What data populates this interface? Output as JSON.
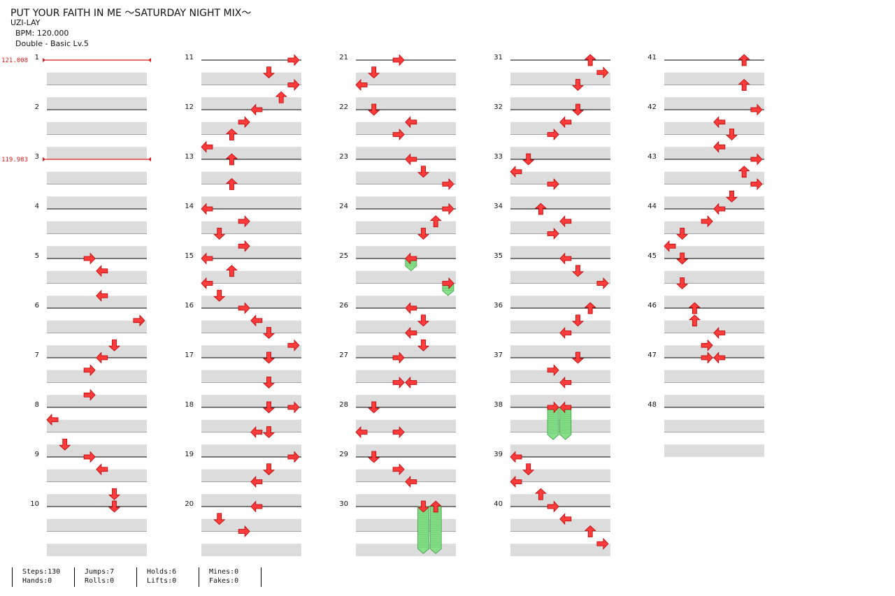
{
  "header": {
    "title": "PUT YOUR FAITH IN ME ～SATURDAY NIGHT MIX～",
    "artist": "UZI-LAY",
    "bpm": "BPM: 120.000",
    "difficulty": "Double - Basic  Lv.5"
  },
  "bpm_changes": [
    {
      "measure": 1,
      "label": "121.008"
    },
    {
      "measure": 3,
      "label": "119.983"
    }
  ],
  "measure_count": 48,
  "columns": 10,
  "notes": [
    {
      "m": 5,
      "row": 0,
      "col": 3,
      "dir": "right"
    },
    {
      "m": 5,
      "row": 1,
      "col": 4,
      "dir": "left"
    },
    {
      "m": 5,
      "row": 3,
      "col": 4,
      "dir": "left"
    },
    {
      "m": 6,
      "row": 1,
      "col": 7,
      "dir": "right"
    },
    {
      "m": 6,
      "row": 3,
      "col": 5,
      "dir": "down"
    },
    {
      "m": 7,
      "row": 0,
      "col": 4,
      "dir": "left"
    },
    {
      "m": 7,
      "row": 1,
      "col": 3,
      "dir": "right"
    },
    {
      "m": 7,
      "row": 3,
      "col": 3,
      "dir": "right"
    },
    {
      "m": 8,
      "row": 1,
      "col": 0,
      "dir": "left"
    },
    {
      "m": 8,
      "row": 3,
      "col": 1,
      "dir": "down"
    },
    {
      "m": 9,
      "row": 0,
      "col": 3,
      "dir": "right"
    },
    {
      "m": 9,
      "row": 1,
      "col": 4,
      "dir": "left"
    },
    {
      "m": 9,
      "row": 3,
      "col": 5,
      "dir": "down"
    },
    {
      "m": 10,
      "row": 0,
      "col": 5,
      "dir": "down"
    },
    {
      "m": 11,
      "row": 0,
      "col": 7,
      "dir": "right"
    },
    {
      "m": 11,
      "row": 1,
      "col": 5,
      "dir": "down"
    },
    {
      "m": 11,
      "row": 2,
      "col": 7,
      "dir": "right"
    },
    {
      "m": 11,
      "row": 3,
      "col": 6,
      "dir": "up"
    },
    {
      "m": 12,
      "row": 0,
      "col": 4,
      "dir": "left"
    },
    {
      "m": 12,
      "row": 1,
      "col": 3,
      "dir": "right"
    },
    {
      "m": 12,
      "row": 2,
      "col": 2,
      "dir": "up"
    },
    {
      "m": 12,
      "row": 3,
      "col": 0,
      "dir": "left"
    },
    {
      "m": 13,
      "row": 0,
      "col": 2,
      "dir": "up"
    },
    {
      "m": 13,
      "row": 2,
      "col": 2,
      "dir": "up"
    },
    {
      "m": 14,
      "row": 0,
      "col": 0,
      "dir": "left"
    },
    {
      "m": 14,
      "row": 1,
      "col": 3,
      "dir": "right"
    },
    {
      "m": 14,
      "row": 2,
      "col": 1,
      "dir": "down"
    },
    {
      "m": 14,
      "row": 3,
      "col": 3,
      "dir": "right"
    },
    {
      "m": 15,
      "row": 0,
      "col": 0,
      "dir": "left"
    },
    {
      "m": 15,
      "row": 1,
      "col": 2,
      "dir": "up"
    },
    {
      "m": 15,
      "row": 2,
      "col": 0,
      "dir": "left"
    },
    {
      "m": 15,
      "row": 3,
      "col": 1,
      "dir": "down"
    },
    {
      "m": 16,
      "row": 0,
      "col": 3,
      "dir": "right"
    },
    {
      "m": 16,
      "row": 1,
      "col": 4,
      "dir": "left"
    },
    {
      "m": 16,
      "row": 2,
      "col": 5,
      "dir": "down"
    },
    {
      "m": 16,
      "row": 3,
      "col": 7,
      "dir": "right"
    },
    {
      "m": 17,
      "row": 0,
      "col": 5,
      "dir": "down"
    },
    {
      "m": 17,
      "row": 2,
      "col": 5,
      "dir": "down"
    },
    {
      "m": 18,
      "row": 0,
      "col": 5,
      "dir": "down"
    },
    {
      "m": 18,
      "row": 0,
      "col": 7,
      "dir": "right"
    },
    {
      "m": 18,
      "row": 2,
      "col": 4,
      "dir": "left"
    },
    {
      "m": 18,
      "row": 2,
      "col": 5,
      "dir": "down"
    },
    {
      "m": 19,
      "row": 0,
      "col": 7,
      "dir": "right"
    },
    {
      "m": 19,
      "row": 1,
      "col": 5,
      "dir": "down"
    },
    {
      "m": 19,
      "row": 2,
      "col": 4,
      "dir": "left"
    },
    {
      "m": 20,
      "row": 0,
      "col": 4,
      "dir": "left"
    },
    {
      "m": 20,
      "row": 1,
      "col": 1,
      "dir": "down"
    },
    {
      "m": 20,
      "row": 2,
      "col": 3,
      "dir": "right"
    },
    {
      "m": 21,
      "row": 0,
      "col": 3,
      "dir": "right"
    },
    {
      "m": 21,
      "row": 1,
      "col": 1,
      "dir": "down"
    },
    {
      "m": 21,
      "row": 2,
      "col": 0,
      "dir": "left"
    },
    {
      "m": 22,
      "row": 0,
      "col": 1,
      "dir": "down"
    },
    {
      "m": 22,
      "row": 1,
      "col": 4,
      "dir": "left"
    },
    {
      "m": 22,
      "row": 2,
      "col": 3,
      "dir": "right"
    },
    {
      "m": 23,
      "row": 0,
      "col": 4,
      "dir": "left"
    },
    {
      "m": 23,
      "row": 1,
      "col": 5,
      "dir": "down"
    },
    {
      "m": 23,
      "row": 2,
      "col": 7,
      "dir": "right"
    },
    {
      "m": 24,
      "row": 0,
      "col": 7,
      "dir": "right"
    },
    {
      "m": 24,
      "row": 1,
      "col": 6,
      "dir": "up"
    },
    {
      "m": 24,
      "row": 2,
      "col": 5,
      "dir": "down"
    },
    {
      "m": 25,
      "row": 0,
      "col": 4,
      "dir": "left",
      "hold": 0.6
    },
    {
      "m": 25,
      "row": 2,
      "col": 7,
      "dir": "right",
      "hold": 0.6
    },
    {
      "m": 26,
      "row": 0,
      "col": 4,
      "dir": "left"
    },
    {
      "m": 26,
      "row": 1,
      "col": 5,
      "dir": "down"
    },
    {
      "m": 26,
      "row": 2,
      "col": 4,
      "dir": "left"
    },
    {
      "m": 26,
      "row": 3,
      "col": 5,
      "dir": "down"
    },
    {
      "m": 27,
      "row": 0,
      "col": 3,
      "dir": "right"
    },
    {
      "m": 27,
      "row": 2,
      "col": 3,
      "dir": "right"
    },
    {
      "m": 27,
      "row": 2,
      "col": 4,
      "dir": "left"
    },
    {
      "m": 28,
      "row": 0,
      "col": 1,
      "dir": "down"
    },
    {
      "m": 28,
      "row": 2,
      "col": 0,
      "dir": "left"
    },
    {
      "m": 28,
      "row": 2,
      "col": 3,
      "dir": "right"
    },
    {
      "m": 29,
      "row": 0,
      "col": 1,
      "dir": "down"
    },
    {
      "m": 29,
      "row": 1,
      "col": 3,
      "dir": "right"
    },
    {
      "m": 29,
      "row": 2,
      "col": 4,
      "dir": "left"
    },
    {
      "m": 30,
      "row": 0,
      "col": 5,
      "dir": "down",
      "hold": 3.4
    },
    {
      "m": 30,
      "row": 0,
      "col": 6,
      "dir": "up",
      "hold": 3.4
    },
    {
      "m": 31,
      "row": 0,
      "col": 6,
      "dir": "up"
    },
    {
      "m": 31,
      "row": 1,
      "col": 7,
      "dir": "right"
    },
    {
      "m": 31,
      "row": 2,
      "col": 5,
      "dir": "down"
    },
    {
      "m": 32,
      "row": 0,
      "col": 5,
      "dir": "down"
    },
    {
      "m": 32,
      "row": 1,
      "col": 4,
      "dir": "left"
    },
    {
      "m": 32,
      "row": 2,
      "col": 3,
      "dir": "right"
    },
    {
      "m": 33,
      "row": 0,
      "col": 1,
      "dir": "down"
    },
    {
      "m": 33,
      "row": 1,
      "col": 0,
      "dir": "left"
    },
    {
      "m": 33,
      "row": 2,
      "col": 3,
      "dir": "right"
    },
    {
      "m": 34,
      "row": 0,
      "col": 2,
      "dir": "up"
    },
    {
      "m": 34,
      "row": 1,
      "col": 4,
      "dir": "left"
    },
    {
      "m": 34,
      "row": 2,
      "col": 3,
      "dir": "right"
    },
    {
      "m": 35,
      "row": 0,
      "col": 4,
      "dir": "left"
    },
    {
      "m": 35,
      "row": 1,
      "col": 5,
      "dir": "down"
    },
    {
      "m": 35,
      "row": 2,
      "col": 7,
      "dir": "right"
    },
    {
      "m": 36,
      "row": 0,
      "col": 6,
      "dir": "up"
    },
    {
      "m": 36,
      "row": 1,
      "col": 5,
      "dir": "down"
    },
    {
      "m": 36,
      "row": 2,
      "col": 4,
      "dir": "left"
    },
    {
      "m": 37,
      "row": 0,
      "col": 5,
      "dir": "down"
    },
    {
      "m": 37,
      "row": 1,
      "col": 3,
      "dir": "right"
    },
    {
      "m": 37,
      "row": 2,
      "col": 4,
      "dir": "left"
    },
    {
      "m": 38,
      "row": 0,
      "col": 3,
      "dir": "right",
      "hold": 2.2
    },
    {
      "m": 38,
      "row": 0,
      "col": 4,
      "dir": "left",
      "hold": 2.2
    },
    {
      "m": 39,
      "row": 0,
      "col": 0,
      "dir": "left"
    },
    {
      "m": 39,
      "row": 1,
      "col": 1,
      "dir": "down"
    },
    {
      "m": 39,
      "row": 2,
      "col": 0,
      "dir": "left"
    },
    {
      "m": 39,
      "row": 3,
      "col": 2,
      "dir": "up"
    },
    {
      "m": 40,
      "row": 0,
      "col": 3,
      "dir": "right"
    },
    {
      "m": 40,
      "row": 1,
      "col": 4,
      "dir": "left"
    },
    {
      "m": 40,
      "row": 2,
      "col": 6,
      "dir": "up"
    },
    {
      "m": 40,
      "row": 3,
      "col": 7,
      "dir": "right"
    },
    {
      "m": 41,
      "row": 0,
      "col": 6,
      "dir": "up"
    },
    {
      "m": 41,
      "row": 2,
      "col": 6,
      "dir": "up"
    },
    {
      "m": 42,
      "row": 0,
      "col": 7,
      "dir": "right"
    },
    {
      "m": 42,
      "row": 1,
      "col": 4,
      "dir": "left"
    },
    {
      "m": 42,
      "row": 2,
      "col": 5,
      "dir": "down"
    },
    {
      "m": 42,
      "row": 3,
      "col": 4,
      "dir": "left"
    },
    {
      "m": 43,
      "row": 0,
      "col": 7,
      "dir": "right"
    },
    {
      "m": 43,
      "row": 1,
      "col": 6,
      "dir": "up"
    },
    {
      "m": 43,
      "row": 2,
      "col": 7,
      "dir": "right"
    },
    {
      "m": 43,
      "row": 3,
      "col": 5,
      "dir": "down"
    },
    {
      "m": 44,
      "row": 0,
      "col": 4,
      "dir": "left"
    },
    {
      "m": 44,
      "row": 1,
      "col": 3,
      "dir": "right"
    },
    {
      "m": 44,
      "row": 2,
      "col": 1,
      "dir": "down"
    },
    {
      "m": 44,
      "row": 3,
      "col": 0,
      "dir": "left"
    },
    {
      "m": 45,
      "row": 0,
      "col": 1,
      "dir": "down"
    },
    {
      "m": 45,
      "row": 2,
      "col": 1,
      "dir": "down"
    },
    {
      "m": 46,
      "row": 0,
      "col": 2,
      "dir": "up"
    },
    {
      "m": 46,
      "row": 1,
      "col": 2,
      "dir": "up"
    },
    {
      "m": 46,
      "row": 2,
      "col": 4,
      "dir": "left"
    },
    {
      "m": 46,
      "row": 3,
      "col": 3,
      "dir": "right"
    },
    {
      "m": 47,
      "row": 0,
      "col": 3,
      "dir": "right"
    },
    {
      "m": 47,
      "row": 0,
      "col": 4,
      "dir": "left"
    }
  ],
  "stats": [
    {
      "a": "Steps:130",
      "b": "Hands:0"
    },
    {
      "a": "Jumps:7",
      "b": "Rolls:0"
    },
    {
      "a": "Holds:6",
      "b": "Lifts:0"
    },
    {
      "a": "Mines:0",
      "b": "Fakes:0"
    }
  ],
  "colors": {
    "arrow": "#ff3b3b",
    "hold": "#86e08a",
    "band": "#dcdcdc",
    "bpm": "#e01b1b"
  }
}
